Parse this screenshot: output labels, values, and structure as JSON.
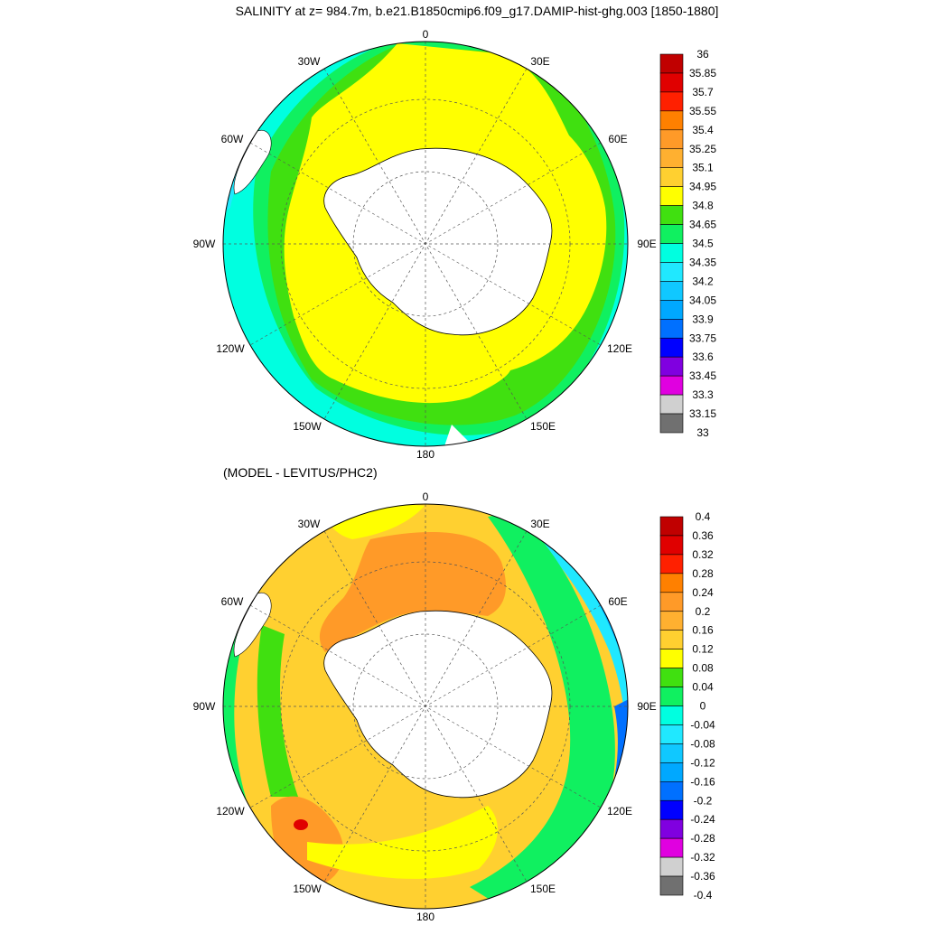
{
  "top": {
    "title": "SALINITY at z= 984.7m, b.e21.B1850cmip6.f09_g17.DAMIP-hist-ghg.003 [1850-1880]",
    "lon_labels": [
      "0",
      "30E",
      "60E",
      "90E",
      "120E",
      "150E",
      "180",
      "150W",
      "120W",
      "90W",
      "60W",
      "30W"
    ],
    "colorbar": {
      "labels": [
        "36",
        "35.85",
        "35.7",
        "35.55",
        "35.4",
        "35.25",
        "35.1",
        "34.95",
        "34.8",
        "34.65",
        "34.5",
        "34.35",
        "34.2",
        "34.05",
        "33.9",
        "33.75",
        "33.6",
        "33.45",
        "33.3",
        "33.15",
        "33"
      ],
      "colors": [
        "#c00000",
        "#e00000",
        "#ff2000",
        "#ff8000",
        "#ff9a28",
        "#ffb030",
        "#ffd030",
        "#ffff00",
        "#40e010",
        "#10f060",
        "#00ffe0",
        "#20e8ff",
        "#10c8ff",
        "#00a8ff",
        "#0070ff",
        "#0000ff",
        "#8000e0",
        "#e000e0",
        "#d0d0d0",
        "#707070"
      ]
    }
  },
  "bottom": {
    "title": "(MODEL - LEVITUS/PHC2)",
    "lon_labels": [
      "0",
      "30E",
      "60E",
      "90E",
      "120E",
      "150E",
      "180",
      "150W",
      "120W",
      "90W",
      "60W",
      "30W"
    ],
    "colorbar": {
      "labels": [
        "0.4",
        "0.36",
        "0.32",
        "0.28",
        "0.24",
        "0.2",
        "0.16",
        "0.12",
        "0.08",
        "0.04",
        "0",
        "-0.04",
        "-0.08",
        "-0.12",
        "-0.16",
        "-0.2",
        "-0.24",
        "-0.28",
        "-0.32",
        "-0.36",
        "-0.4"
      ],
      "colors": [
        "#c00000",
        "#e00000",
        "#ff2000",
        "#ff8000",
        "#ff9a28",
        "#ffb030",
        "#ffd030",
        "#ffff00",
        "#40e010",
        "#10f060",
        "#00ffe0",
        "#20e8ff",
        "#10c8ff",
        "#00a8ff",
        "#0070ff",
        "#0000ff",
        "#8000e0",
        "#e000e0",
        "#d0d0d0",
        "#707070"
      ]
    }
  }
}
